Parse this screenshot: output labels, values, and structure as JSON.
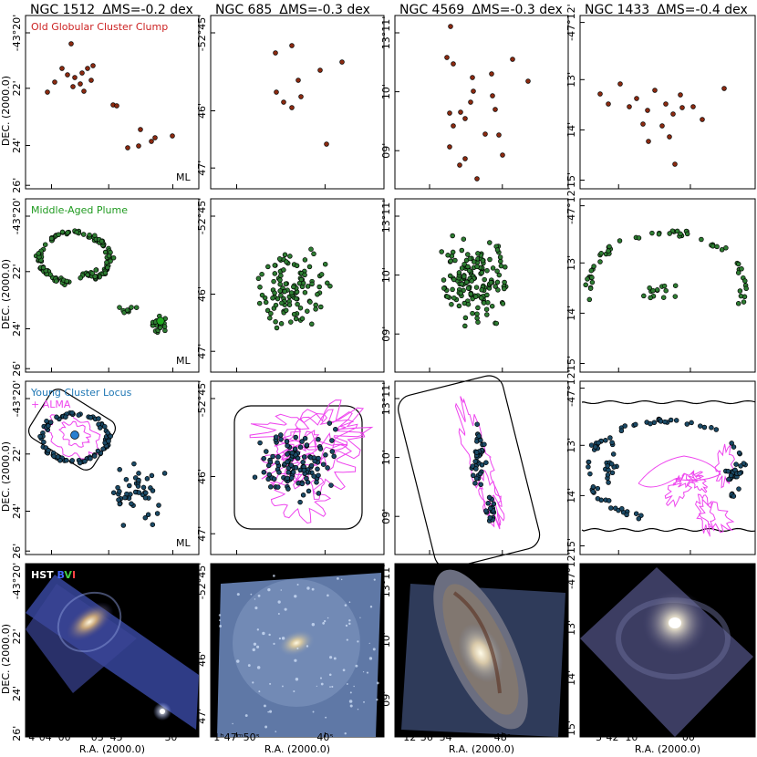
{
  "galaxies": [
    {
      "name": "NGC 1512",
      "dms": "ΔMS=-0.2 dex",
      "dec_labels": [
        "-43°20'",
        "22'",
        "24'",
        "26'"
      ],
      "ra_labels": [
        "4ʰ04ᵐ00ˢ",
        "03ᵐ45ˢ",
        "30ˢ"
      ]
    },
    {
      "name": "NGC 685",
      "dms": "ΔMS=-0.3 dex",
      "dec_labels": [
        "-52°45'",
        "46'",
        "47'"
      ],
      "ra_labels": [
        "1ʰ47ᵐ50ˢ",
        "40ˢ"
      ]
    },
    {
      "name": "NGC 4569",
      "dms": "ΔMS=-0.3 dex",
      "dec_labels": [
        "13°11'",
        "10'",
        "09'"
      ],
      "ra_labels": [
        "12ʰ36ᵐ54ˢ",
        "48ˢ"
      ]
    },
    {
      "name": "NGC 1433",
      "dms": "ΔMS=-0.4 dex",
      "dec_labels": [
        "-47°12'",
        "13'",
        "14'",
        "15'"
      ],
      "ra_labels": [
        "3ʰ42ᵐ10ˢ",
        "00ˢ"
      ]
    }
  ],
  "rows": [
    {
      "label": "Old Globular Cluster Clump",
      "color": "#cc2222",
      "dot_color": "#8b2a10"
    },
    {
      "label": "Middle-Aged Plume",
      "color": "#1f9a1f",
      "dot_color": "#2e7d32"
    },
    {
      "label": "Young Cluster Locus",
      "label2": "+ ALMA",
      "color": "#1f77b4",
      "alma_color": "#ee44ee",
      "dot_color": "#1b4a66"
    },
    {
      "label": "HST",
      "bands": [
        "B",
        "V",
        "I"
      ],
      "band_colors": [
        "#4466ff",
        "#44cc44",
        "#ff4444"
      ]
    }
  ],
  "ml_label": "ML",
  "dec_axis_title": "DEC. (2000.0)",
  "ra_axis_title": "R.A. (2000.0)"
}
